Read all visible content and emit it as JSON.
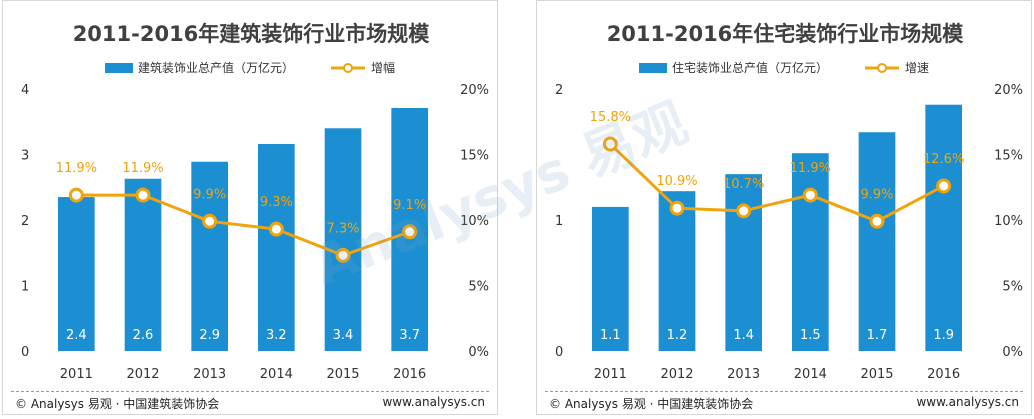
{
  "colors": {
    "bar": "#1b8fd2",
    "line": "#f0a30a",
    "text": "#333333",
    "grid": "#e6e6e6"
  },
  "watermark": "Analysys 易观",
  "charts": [
    {
      "footer_left": "© Analysys 易观 · 中国建筑装饰协会",
      "footer_right": "www.analysys.cn"
    },
    {
      "footer_left": "© Analysys 易观 · 中国建筑装饰协会",
      "footer_right": "www.analysys.cn"
    }
  ],
  "chart_data": [
    {
      "type": "bar",
      "title": "2011-2016年建筑装饰行业市场规模",
      "categories": [
        "2011",
        "2012",
        "2013",
        "2014",
        "2015",
        "2016"
      ],
      "series": [
        {
          "name": "建筑装饰业总产值（万亿元）",
          "type": "bar",
          "axis": "left",
          "values": [
            2.35,
            2.63,
            2.89,
            3.16,
            3.4,
            3.71
          ],
          "labels": [
            "2.4",
            "2.6",
            "2.9",
            "3.2",
            "3.4",
            "3.7"
          ]
        },
        {
          "name": "增幅",
          "type": "line",
          "axis": "right",
          "values": [
            11.9,
            11.9,
            9.9,
            9.3,
            7.3,
            9.1
          ],
          "labels": [
            "11.9%",
            "11.9%",
            "9.9%",
            "9.3%",
            "7.3%",
            "9.1%"
          ]
        }
      ],
      "left_ticks": [
        "0",
        "1",
        "2",
        "3",
        "4"
      ],
      "right_ticks": [
        "0%",
        "5%",
        "10%",
        "15%",
        "20%"
      ],
      "ylim": [
        0,
        4
      ],
      "y2lim": [
        0,
        20
      ],
      "grid": false,
      "legend": "top"
    },
    {
      "type": "bar",
      "title": "2011-2016年住宅装饰行业市场规模",
      "categories": [
        "2011",
        "2012",
        "2013",
        "2014",
        "2015",
        "2016"
      ],
      "series": [
        {
          "name": "住宅装饰业总产值（万亿元）",
          "type": "bar",
          "axis": "left",
          "values": [
            1.1,
            1.22,
            1.35,
            1.51,
            1.67,
            1.88
          ],
          "labels": [
            "1.1",
            "1.2",
            "1.4",
            "1.5",
            "1.7",
            "1.9"
          ]
        },
        {
          "name": "增速",
          "type": "line",
          "axis": "right",
          "values": [
            15.8,
            10.9,
            10.7,
            11.9,
            9.9,
            12.6
          ],
          "labels": [
            "15.8%",
            "10.9%",
            "10.7%",
            "11.9%",
            "9.9%",
            "12.6%"
          ]
        }
      ],
      "left_ticks": [
        "0",
        "1",
        "2"
      ],
      "right_ticks": [
        "0%",
        "5%",
        "10%",
        "15%",
        "20%"
      ],
      "ylim": [
        0,
        2
      ],
      "y2lim": [
        0,
        20
      ],
      "grid": false,
      "legend": "top"
    }
  ]
}
